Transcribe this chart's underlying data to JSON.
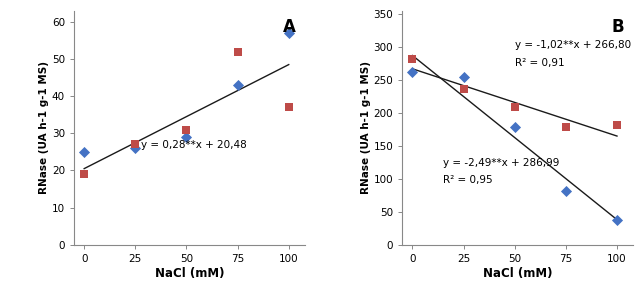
{
  "panel_A": {
    "label": "A",
    "xlabel": "NaCl (mM)",
    "ylabel": "RNase (UA h-1 g-1 MS)",
    "xlim": [
      -5,
      108
    ],
    "ylim": [
      0,
      63
    ],
    "yticks": [
      0,
      10,
      20,
      30,
      40,
      50,
      60
    ],
    "xticks": [
      0,
      25,
      50,
      75,
      100
    ],
    "bicolor_x": [
      0,
      25,
      50,
      75,
      100
    ],
    "bicolor_y": [
      25,
      26,
      29,
      43,
      57
    ],
    "sudanense_x": [
      0,
      25,
      50,
      75,
      100
    ],
    "sudanense_y": [
      19,
      27,
      31,
      52,
      37
    ],
    "line_x0": 0,
    "line_x1": 100,
    "line_slope": 0.28,
    "line_intercept": 20.48,
    "eq_text": "y = 0,28**x + 20,48",
    "eq_x": 28,
    "eq_y": 26,
    "bicolor_color": "#4472C4",
    "sudanense_color": "#BE4B48"
  },
  "panel_B": {
    "label": "B",
    "xlabel": "NaCl (mM)",
    "ylabel": "RNase (UA h-1 g-1 MS)",
    "xlim": [
      -5,
      108
    ],
    "ylim": [
      0,
      355
    ],
    "yticks": [
      0,
      50,
      100,
      150,
      200,
      250,
      300,
      350
    ],
    "xticks": [
      0,
      25,
      50,
      75,
      100
    ],
    "bicolor_x": [
      0,
      25,
      50,
      75,
      100
    ],
    "bicolor_y": [
      262,
      254,
      178,
      81,
      38
    ],
    "sudanense_x": [
      0,
      25,
      50,
      75,
      100
    ],
    "sudanense_y": [
      281,
      236,
      209,
      178,
      182
    ],
    "line1_slope": -2.49,
    "line1_intercept": 286.99,
    "line1_eq": "y = -2,49**x + 286,99",
    "line1_r2": "R2 = 0,95",
    "line1_eq_x": 15,
    "line1_eq_y": 120,
    "line2_slope": -1.02,
    "line2_intercept": 266.8,
    "line2_eq": "y = -1,02**x + 266,80",
    "line2_r2": "R2 = 0,91",
    "line2_eq_x": 50,
    "line2_eq_y": 298,
    "bicolor_color": "#4472C4",
    "sudanense_color": "#BE4B48"
  },
  "background_color": "#FFFFFF",
  "marker_size": 32,
  "line_color": "#1A1A1A"
}
